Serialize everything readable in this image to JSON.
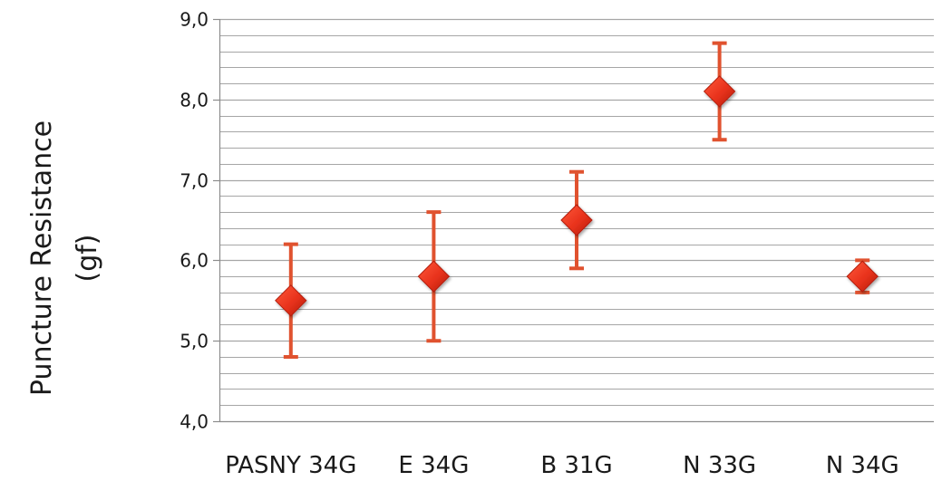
{
  "chart_data": {
    "type": "scatter",
    "title": "",
    "xlabel": "",
    "ylabel_lines": [
      "Puncture Resistance",
      "(gf)"
    ],
    "categories": [
      "PASNY 34G",
      "E 34G",
      "B 31G",
      "N 33G",
      "N 34G"
    ],
    "series": [
      {
        "values": [
          5.5,
          5.8,
          6.5,
          8.1,
          5.8
        ],
        "error_low": [
          4.8,
          5.0,
          5.9,
          7.5,
          5.6
        ],
        "error_high": [
          6.2,
          6.6,
          7.1,
          8.7,
          6.0
        ]
      }
    ],
    "ylim": [
      4.0,
      9.0
    ],
    "major_ticks": [
      4.0,
      5.0,
      6.0,
      7.0,
      8.0,
      9.0
    ],
    "tick_labels": [
      "4,0",
      "5,0",
      "6,0",
      "7,0",
      "8,0",
      "9,0"
    ],
    "minor_step": 0.2,
    "grid": true,
    "colors": {
      "marker": "#e8321c",
      "marker_dark": "#b31e0c",
      "error_bar": "#e0522f",
      "grid": "#a6a6a6",
      "axis": "#8c8c8c"
    }
  }
}
